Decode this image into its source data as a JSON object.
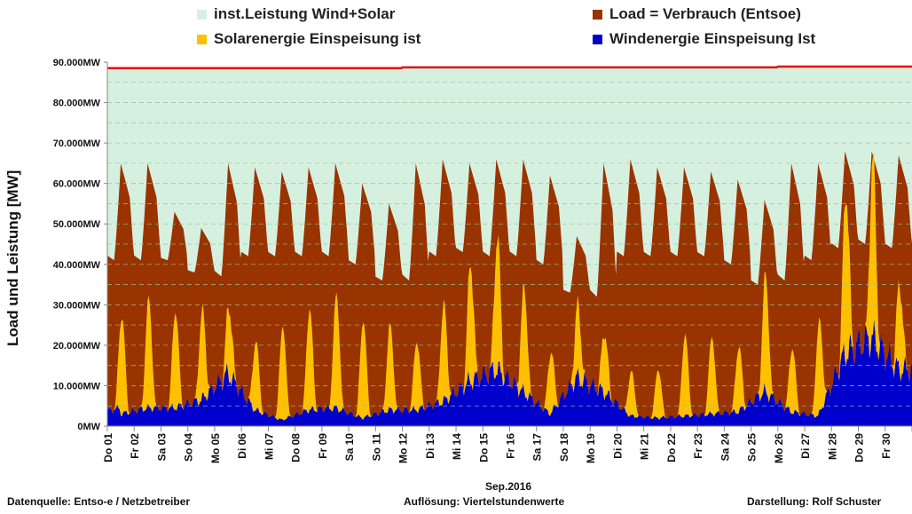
{
  "legend": {
    "installed": "inst.Leistung Wind+Solar",
    "load": "Load =  Verbrauch (Entsoe)",
    "solar": "Solarenergie Einspeisung ist",
    "wind": "Windenergie Einspeisung Ist"
  },
  "colors": {
    "installed": "#d6f0e0",
    "installed_line": "#e01010",
    "load": "#993300",
    "solar": "#ffc000",
    "wind": "#0000cc"
  },
  "xaxis_title": "Sep.2016",
  "footer": {
    "source": "Datenquelle:  Entso-e  / Netzbetreiber",
    "resolution": "Auflösung: Viertelstundenwerte",
    "author": "Darstellung: Rolf Schuster"
  },
  "chart_data": {
    "type": "area",
    "ylabel": "Load und Leistung  [MW]",
    "xlabel": "Sep.2016",
    "ylim": [
      0,
      90000
    ],
    "yticks": [
      0,
      10000,
      20000,
      30000,
      40000,
      50000,
      60000,
      70000,
      80000,
      90000
    ],
    "ytick_labels": [
      "0MW",
      "10.000MW",
      "20.000MW",
      "30.000MW",
      "40.000MW",
      "50.000MW",
      "60.000MW",
      "70.000MW",
      "80.000MW",
      "90.000MW"
    ],
    "grid": true,
    "days": [
      "Do 01",
      "Fr 02",
      "Sa 03",
      "So 04",
      "Mo 05",
      "Di 06",
      "Mi 07",
      "Do 08",
      "Fr 09",
      "Sa 10",
      "So 11",
      "Mo 12",
      "Di 13",
      "Mi 14",
      "Do 15",
      "Fr 16",
      "Sa 17",
      "So 18",
      "Mo 19",
      "Di 20",
      "Mi 21",
      "Do 22",
      "Fr 23",
      "Sa 24",
      "So 25",
      "Mo 26",
      "Di 27",
      "Mi 28",
      "Do 29",
      "Fr 30"
    ],
    "series": [
      {
        "name": "inst.Leistung Wind+Solar",
        "unit": "MW",
        "values": [
          88500,
          88500,
          88500,
          88500,
          88500,
          88500,
          88500,
          88500,
          88500,
          88500,
          88500,
          88700,
          88700,
          88700,
          88700,
          88700,
          88700,
          88700,
          88700,
          88700,
          88700,
          88700,
          88700,
          88700,
          88700,
          88900,
          88900,
          88900,
          88900,
          88900
        ]
      },
      {
        "name": "Load =  Verbrauch (Entsoe) — daily peak",
        "unit": "MW",
        "values": [
          65000,
          65000,
          53000,
          49000,
          65000,
          64000,
          63000,
          64000,
          65000,
          60000,
          55000,
          65000,
          66000,
          65000,
          66000,
          66000,
          62000,
          47000,
          65000,
          66000,
          64000,
          64000,
          63000,
          61000,
          56000,
          65000,
          65000,
          68000,
          68000,
          67000
        ]
      },
      {
        "name": "Load =  Verbrauch (Entsoe) — night minimum",
        "unit": "MW",
        "values": [
          41000,
          41000,
          41000,
          38000,
          37000,
          42000,
          42000,
          42000,
          42000,
          40000,
          36000,
          36000,
          42000,
          43000,
          42000,
          42000,
          40000,
          33000,
          32000,
          42000,
          42000,
          42000,
          42000,
          40000,
          35000,
          36000,
          41000,
          44000,
          45000,
          44000
        ]
      },
      {
        "name": "Solarenergie Einspeisung ist — daily peak",
        "unit": "MW",
        "values": [
          24000,
          27000,
          24000,
          22000,
          17000,
          17000,
          23000,
          25000,
          28000,
          24000,
          21000,
          17000,
          24000,
          29000,
          33000,
          26000,
          15000,
          18000,
          15000,
          11000,
          12000,
          20000,
          19000,
          16000,
          29000,
          16000,
          23000,
          40000,
          44000,
          21000
        ]
      },
      {
        "name": "Windenergie Einspeisung Ist — daily mean",
        "unit": "MW",
        "values": [
          3000,
          4500,
          4500,
          6500,
          13000,
          4000,
          1500,
          4000,
          4500,
          2000,
          4000,
          4000,
          6000,
          11000,
          14000,
          8500,
          3000,
          12000,
          8500,
          2500,
          2000,
          2500,
          3000,
          3500,
          8500,
          3500,
          2500,
          18000,
          22000,
          14000
        ]
      }
    ]
  }
}
